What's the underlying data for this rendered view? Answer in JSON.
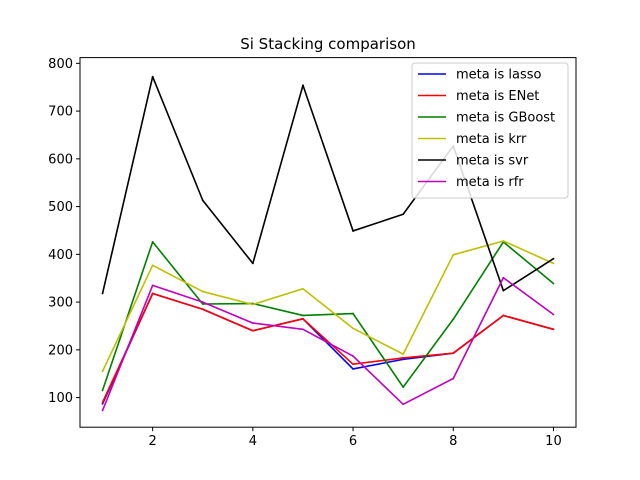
{
  "chart_data": {
    "type": "line",
    "title": "Si Stacking comparison",
    "xlabel": "",
    "ylabel": "",
    "x": [
      1,
      2,
      3,
      4,
      5,
      6,
      7,
      8,
      9,
      10
    ],
    "xlim": [
      0.55,
      10.45
    ],
    "ylim": [
      38,
      812
    ],
    "xticks": [
      2,
      4,
      6,
      8,
      10
    ],
    "yticks": [
      100,
      200,
      300,
      400,
      500,
      600,
      700,
      800
    ],
    "grid": false,
    "legend_position": "top-right",
    "series": [
      {
        "name": "meta is lasso",
        "color": "#0000ff",
        "values": [
          87,
          318,
          285,
          240,
          265,
          160,
          180,
          193,
          272,
          243
        ]
      },
      {
        "name": "meta is ENet",
        "color": "#ff0000",
        "values": [
          90,
          318,
          285,
          240,
          265,
          170,
          183,
          193,
          272,
          243
        ]
      },
      {
        "name": "meta is GBoost",
        "color": "#008000",
        "values": [
          115,
          426,
          296,
          297,
          272,
          276,
          122,
          264,
          426,
          339
        ]
      },
      {
        "name": "meta is krr",
        "color": "#bfbf00",
        "values": [
          155,
          377,
          322,
          295,
          328,
          245,
          191,
          399,
          428,
          381
        ]
      },
      {
        "name": "meta is svr",
        "color": "#000000",
        "values": [
          318,
          772,
          513,
          381,
          754,
          449,
          484,
          627,
          324,
          391
        ]
      },
      {
        "name": "meta is rfr",
        "color": "#bf00bf",
        "values": [
          73,
          335,
          300,
          256,
          243,
          187,
          86,
          140,
          351,
          274
        ]
      }
    ]
  }
}
